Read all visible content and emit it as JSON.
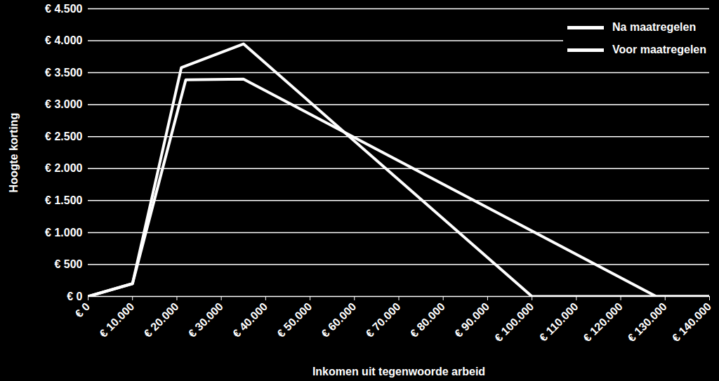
{
  "chart_data": {
    "type": "line",
    "x_label": "Inkomen uit tegenwoorde arbeid",
    "y_label": "Hoogte korting",
    "xlim": [
      0,
      140000
    ],
    "ylim": [
      0,
      4500
    ],
    "xticks": [
      {
        "value": 0,
        "label": "€ 0"
      },
      {
        "value": 10000,
        "label": "€ 10.000"
      },
      {
        "value": 20000,
        "label": "€ 20.000"
      },
      {
        "value": 30000,
        "label": "€ 30.000"
      },
      {
        "value": 40000,
        "label": "€ 40.000"
      },
      {
        "value": 50000,
        "label": "€ 50.000"
      },
      {
        "value": 60000,
        "label": "€ 60.000"
      },
      {
        "value": 70000,
        "label": "€ 70.000"
      },
      {
        "value": 80000,
        "label": "€ 80.000"
      },
      {
        "value": 90000,
        "label": "€ 90.000"
      },
      {
        "value": 100000,
        "label": "€ 100.000"
      },
      {
        "value": 110000,
        "label": "€ 110.000"
      },
      {
        "value": 120000,
        "label": "€ 120.000"
      },
      {
        "value": 130000,
        "label": "€ 130.000"
      },
      {
        "value": 140000,
        "label": "€ 140.000"
      }
    ],
    "yticks": [
      {
        "value": 0,
        "label": "€ 0"
      },
      {
        "value": 500,
        "label": "€ 500"
      },
      {
        "value": 1000,
        "label": "€ 1.000"
      },
      {
        "value": 1500,
        "label": "€ 1.500"
      },
      {
        "value": 2000,
        "label": "€ 2.000"
      },
      {
        "value": 2500,
        "label": "€ 2.500"
      },
      {
        "value": 3000,
        "label": "€ 3.000"
      },
      {
        "value": 3500,
        "label": "€ 3.500"
      },
      {
        "value": 4000,
        "label": "€ 4.000"
      },
      {
        "value": 4500,
        "label": "€ 4.500"
      }
    ],
    "grid": true,
    "legend": "top-right",
    "series": [
      {
        "name": "Na maatregelen",
        "color": "#ffffff",
        "x": [
          0,
          10000,
          21000,
          35000,
          100000,
          140000
        ],
        "values": [
          0,
          200,
          3580,
          3950,
          0,
          0
        ]
      },
      {
        "name": "Voor maatregelen",
        "color": "#ffffff",
        "x": [
          0,
          10000,
          22000,
          35000,
          128000,
          140000
        ],
        "values": [
          0,
          200,
          3390,
          3400,
          0,
          0
        ]
      }
    ]
  }
}
